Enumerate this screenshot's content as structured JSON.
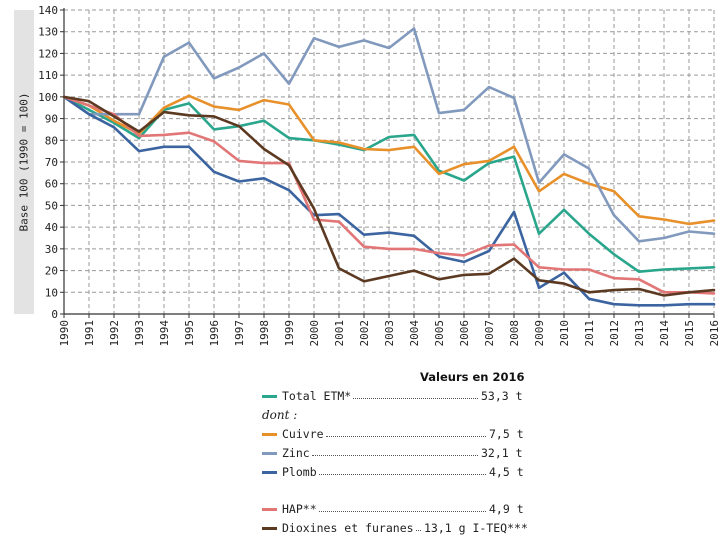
{
  "chart_data": {
    "type": "line",
    "ylabel": "Base 100 (1990 = 100)",
    "ylim": [
      0,
      140
    ],
    "yticks": [
      "0",
      "10",
      "20",
      "30",
      "40",
      "50",
      "60",
      "70",
      "80",
      "90",
      "100",
      "110",
      "120",
      "130",
      "140"
    ],
    "x": [
      "1990",
      "1991",
      "1992",
      "1993",
      "1994",
      "1995",
      "1996",
      "1997",
      "1998",
      "1999",
      "2000",
      "2001",
      "2002",
      "2003",
      "2004",
      "2005",
      "2006",
      "2007",
      "2008",
      "2009",
      "2010",
      "2011",
      "2012",
      "2013",
      "2014",
      "2015",
      "2016"
    ],
    "grid": "dashed",
    "series": [
      {
        "key": "etm",
        "name": "Total ETM*",
        "color": "#2aa68c",
        "values": [
          100,
          94,
          88,
          81,
          94,
          97,
          85,
          86.5,
          89,
          81,
          80,
          78,
          75.5,
          81.5,
          82.5,
          66,
          61.5,
          69.5,
          72.5,
          37,
          48,
          37,
          27.5,
          19.5,
          20.5,
          21,
          21.5
        ]
      },
      {
        "key": "cuivre",
        "name": "Cuivre",
        "color": "#e8902a",
        "values": [
          100,
          96,
          89,
          83,
          95,
          100.5,
          95.5,
          94,
          98.5,
          96.5,
          80,
          79,
          76,
          75.5,
          77,
          64.5,
          69,
          70.5,
          77,
          56.5,
          64.5,
          60,
          56.5,
          45,
          43.5,
          41.5,
          43
        ]
      },
      {
        "key": "zinc",
        "name": "Zinc",
        "color": "#8299be",
        "values": [
          100,
          92,
          92,
          92,
          118.5,
          125,
          108.5,
          113.5,
          120,
          106,
          127,
          123,
          126,
          122.5,
          131.5,
          92.5,
          94,
          104.5,
          99.5,
          60.5,
          73.5,
          67,
          45.5,
          33.5,
          35,
          38,
          37
        ]
      },
      {
        "key": "plomb",
        "name": "Plomb",
        "color": "#3b64a0",
        "values": [
          100,
          92,
          86,
          75,
          77,
          77,
          65.5,
          61,
          62.5,
          57,
          45.5,
          46,
          36.5,
          37.5,
          36,
          26.5,
          24,
          29,
          47,
          12,
          19,
          7,
          4.5,
          4,
          4,
          4.5,
          4.5
        ]
      },
      {
        "key": "hap",
        "name": "HAP**",
        "color": "#e27676",
        "values": [
          100,
          96,
          92,
          82,
          82.5,
          83.5,
          79.5,
          70.5,
          69.5,
          69.5,
          43.5,
          42.5,
          31,
          30,
          30,
          28,
          27,
          31.5,
          32,
          21.5,
          20.5,
          20.5,
          16.5,
          16,
          10,
          10,
          9.5
        ]
      },
      {
        "key": "dioxines",
        "name": "Dioxines et furanes",
        "color": "#5c3a22",
        "values": [
          100,
          98,
          91,
          84,
          93,
          91.5,
          91,
          86.5,
          76,
          68.5,
          48.5,
          21,
          15,
          17.5,
          20,
          16,
          18,
          18.5,
          25.5,
          15.5,
          14,
          10,
          11,
          11.5,
          8.5,
          10,
          11
        ]
      }
    ]
  },
  "legend": {
    "title": "Valeurs en 2016",
    "dont": "dont :",
    "items": [
      {
        "name": "Total ETM*",
        "value": "53,3 t"
      },
      {
        "name": "Cuivre",
        "value": "7,5 t"
      },
      {
        "name": "Zinc",
        "value": "32,1 t"
      },
      {
        "name": "Plomb",
        "value": "4,5 t"
      },
      {
        "name": "HAP**",
        "value": "4,9 t"
      },
      {
        "name": "Dioxines et furanes",
        "value": "13,1 g I-TEQ***"
      }
    ]
  }
}
